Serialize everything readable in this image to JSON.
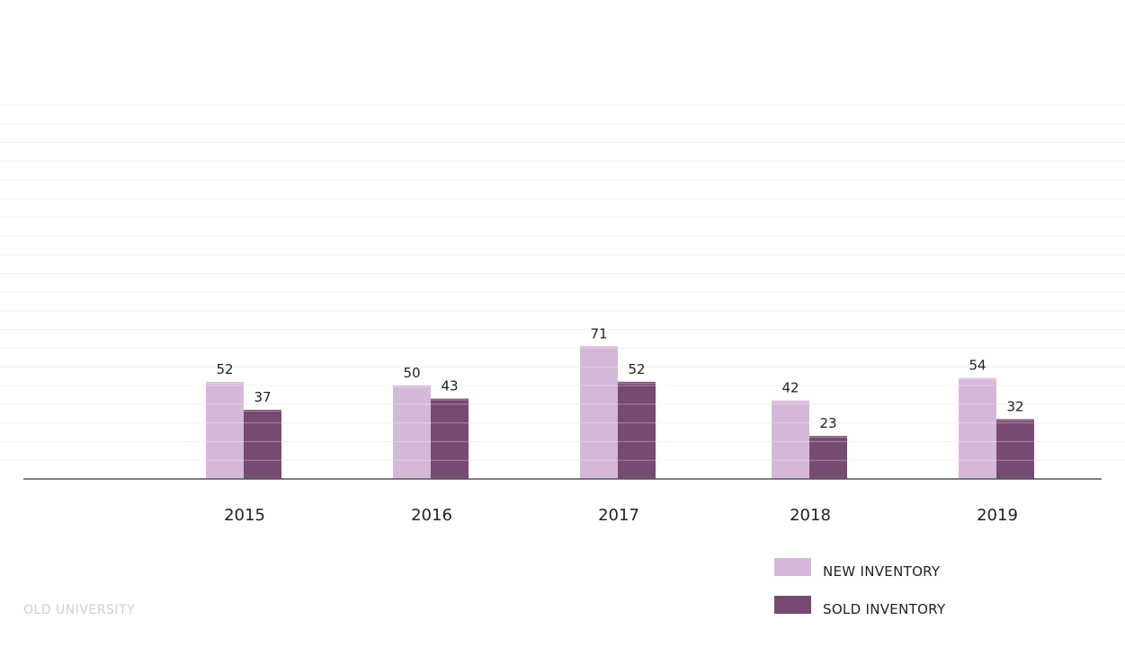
{
  "chart_data": {
    "type": "bar",
    "title": "",
    "xlabel": "",
    "ylabel": "",
    "categories": [
      "2015",
      "2016",
      "2017",
      "2018",
      "2019"
    ],
    "series": [
      {
        "name": "NEW INVENTORY",
        "values": [
          52,
          50,
          71,
          42,
          54
        ],
        "color": "#d5b8d8"
      },
      {
        "name": "SOLD INVENTORY",
        "values": [
          37,
          43,
          52,
          23,
          32
        ],
        "color": "#774a71"
      }
    ],
    "ylim": [
      0,
      200
    ],
    "grid": true,
    "legend": "bottom-right"
  },
  "footer": {
    "watermark": "OLD UNIVERSITY"
  },
  "colors": {
    "axis": "#555555",
    "grid": "#f1eef1",
    "text": "#222222",
    "watermark": "#cfcfcf"
  }
}
